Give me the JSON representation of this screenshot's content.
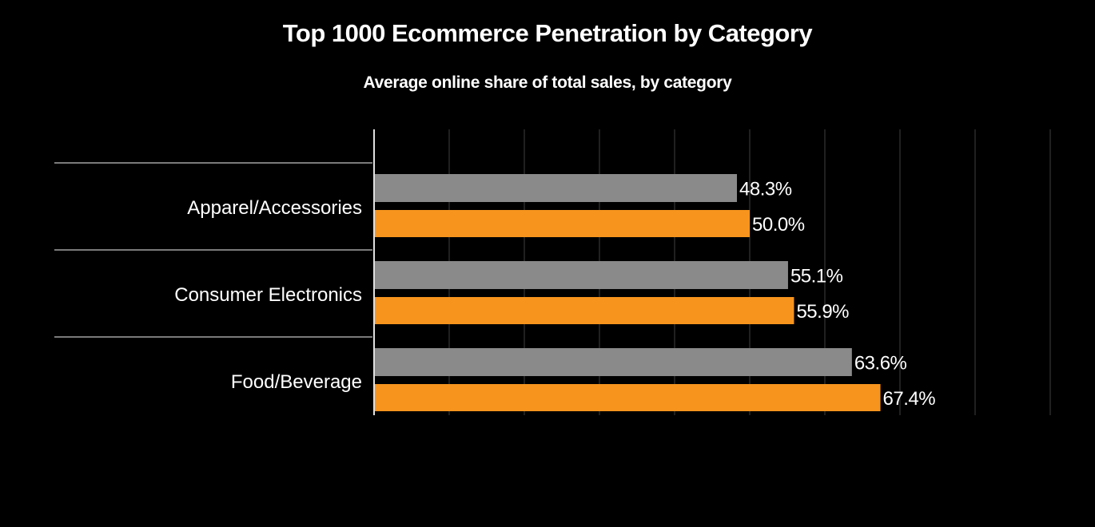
{
  "chart_data": {
    "type": "bar",
    "orientation": "horizontal",
    "title": "Top 1000 Ecommerce Penetration by Category",
    "subtitle": "Average online share of total sales, by category",
    "categories": [
      "Apparel/Accessories",
      "Consumer Electronics",
      "Food/Beverage"
    ],
    "series": [
      {
        "values": [
          48.3,
          55.1,
          63.6
        ],
        "labels": [
          "48.3%",
          "55.1%",
          "63.6%"
        ],
        "color": "#8a8a8a"
      },
      {
        "values": [
          50.0,
          55.9,
          67.4
        ],
        "labels": [
          "50.0%",
          "55.9%",
          "67.4%"
        ],
        "color": "#f7941d"
      }
    ],
    "xlim": [
      0,
      90
    ],
    "grid_step": 10,
    "grid": true,
    "legend": "none",
    "background": "#000000"
  }
}
